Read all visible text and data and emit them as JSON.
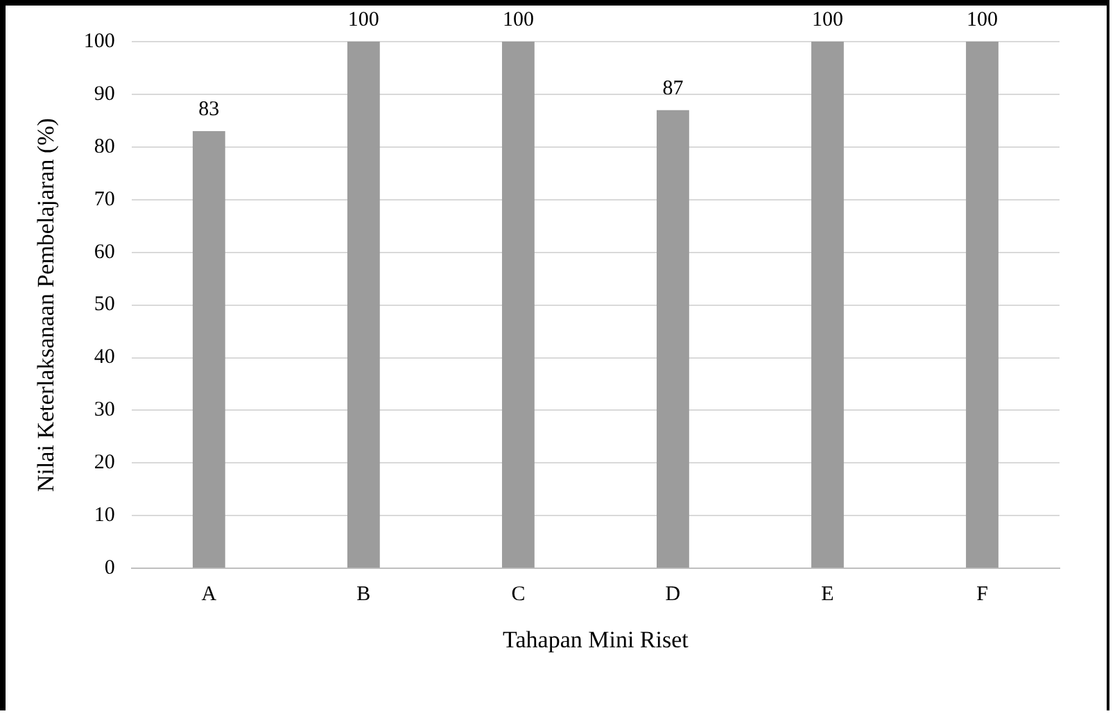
{
  "chart_data": {
    "type": "bar",
    "xlabel": "Tahapan Mini Riset",
    "ylabel": "Nilai Keterlaksanaan Pembelajaran (%)",
    "categories": [
      "A",
      "B",
      "C",
      "D",
      "E",
      "F"
    ],
    "values": [
      83,
      100,
      100,
      87,
      100,
      100
    ],
    "color": "#9c9c9c",
    "ylim": [
      0,
      100
    ],
    "yticks": [
      0,
      10,
      20,
      30,
      40,
      50,
      60,
      70,
      80,
      90,
      100
    ],
    "grid": "y",
    "data_labels": true
  }
}
